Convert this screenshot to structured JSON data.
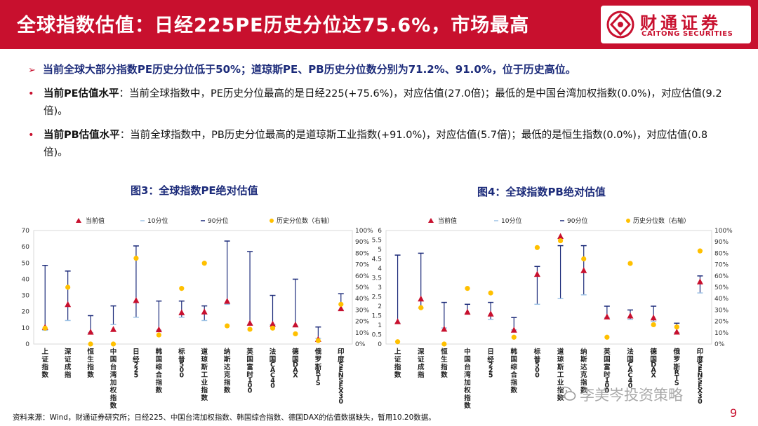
{
  "header": {
    "title": "全球指数估值：日经225PE历史分位达75.6%，市场最高",
    "logo_cn": "财通证券",
    "logo_en": "CAITONG SECURITIES"
  },
  "summary": "当前全球大部分指数PE历史分位低于50%；道琼斯PE、PB历史分位数分别为71.2%、91.0%，位于历史高位。",
  "bullets": [
    {
      "label": "当前PE估值水平",
      "text": "：当前全球指数中，PE历史分位最高的是日经225(+75.6%)，对应估值(27.0倍)；最低的是中国台湾加权指数(0.0%)，对应估值(9.2倍)。"
    },
    {
      "label": "当前PB估值水平",
      "text": "：当前全球指数中，PB历史分位最高的是道琼斯工业指数(+91.0%)，对应估值(5.7倍)；最低的是恒生指数(0.0%)，对应估值(0.8倍)。"
    }
  ],
  "colors": {
    "brand": "#c8102e",
    "navy": "#1c2b7a",
    "current": "#c8102e",
    "percentile": "#ffc000",
    "line": "#1c2b7a"
  },
  "chart_data": [
    {
      "type": "scatter",
      "title": "图3：全球指数PE绝对估值",
      "legend": [
        "当前值",
        "10分位",
        "90分位",
        "历史分位数（右轴）"
      ],
      "legend_position": "top",
      "categories": [
        "上证指数",
        "深证成指",
        "恒生指数",
        "中国台湾加权指数",
        "日经225",
        "韩国综合指数",
        "标普500",
        "道琼斯工业指数",
        "纳斯达克指数",
        "英国富时100",
        "法国CAC40",
        "德国DAX",
        "俄罗斯RTS",
        "印度SENSEX30"
      ],
      "y_left_ticks": [
        "0",
        "10",
        "20",
        "30",
        "40",
        "50",
        "60",
        "70"
      ],
      "y_right_ticks": [
        "0%",
        "10%",
        "20%",
        "30%",
        "40%",
        "50%",
        "60%",
        "70%",
        "80%",
        "90%",
        "100%"
      ],
      "ylim_left": [
        0,
        70
      ],
      "ylim_right": [
        0,
        1
      ],
      "series": [
        {
          "name": "当前值",
          "axis": "left",
          "values": [
            10.5,
            24.5,
            7.5,
            9.2,
            27.0,
            9.0,
            19.5,
            20.0,
            26.5,
            13.0,
            12.5,
            12.0,
            3.0,
            22.0
          ]
        },
        {
          "name": "10分位",
          "axis": "left",
          "values": [
            8.5,
            14.5,
            7.0,
            12.0,
            16.5,
            8.5,
            16.5,
            14.5,
            24.5,
            12.0,
            12.0,
            11.0,
            3.5,
            21.0
          ]
        },
        {
          "name": "90分位",
          "axis": "left",
          "values": [
            48.5,
            45.0,
            17.5,
            23.5,
            60.5,
            26.5,
            26.5,
            23.5,
            63.5,
            57.0,
            30.0,
            40.0,
            10.5,
            31.0
          ]
        },
        {
          "name": "历史分位数（右轴）",
          "axis": "right",
          "values": [
            0.14,
            0.5,
            0.0,
            0.0,
            0.756,
            0.08,
            0.49,
            0.712,
            0.16,
            0.13,
            0.14,
            0.09,
            0.03,
            0.35
          ]
        }
      ]
    },
    {
      "type": "scatter",
      "title": "图4：全球指数PB绝对估值",
      "legend": [
        "当前值",
        "10分位",
        "90分位",
        "历史分位数（右轴）"
      ],
      "legend_position": "top",
      "categories": [
        "上证指数",
        "深证成指",
        "恒生指数",
        "中国台湾加权指数",
        "日经225",
        "韩国综合指数",
        "标普500",
        "道琼斯工业指数",
        "纳斯达克指数",
        "英国富时100",
        "法国CAC40",
        "德国DAX",
        "俄罗斯RTS",
        "印度SENSEX30"
      ],
      "y_left_ticks": [
        "0",
        "0.5",
        "1",
        "1.5",
        "2",
        "2.5",
        "3",
        "3.5",
        "4",
        "4.5",
        "5",
        "5.5",
        "6"
      ],
      "y_right_ticks": [
        "0%",
        "10%",
        "20%",
        "30%",
        "40%",
        "50%",
        "60%",
        "70%",
        "80%",
        "90%",
        "100%"
      ],
      "ylim_left": [
        0,
        6
      ],
      "ylim_right": [
        0,
        1
      ],
      "series": [
        {
          "name": "当前值",
          "axis": "left",
          "values": [
            1.2,
            2.4,
            0.8,
            1.7,
            1.6,
            0.75,
            3.7,
            5.7,
            3.9,
            1.45,
            1.5,
            1.4,
            0.65,
            3.3
          ]
        },
        {
          "name": "10分位",
          "axis": "left",
          "values": [
            1.1,
            1.9,
            0.85,
            1.6,
            1.3,
            0.75,
            2.1,
            2.4,
            2.6,
            1.4,
            1.3,
            1.2,
            0.6,
            2.7
          ]
        },
        {
          "name": "90分位",
          "axis": "left",
          "values": [
            4.7,
            4.8,
            2.2,
            2.1,
            2.2,
            1.4,
            4.1,
            5.2,
            5.2,
            2.0,
            1.8,
            2.0,
            1.1,
            3.6
          ]
        },
        {
          "name": "历史分位数（右轴）",
          "axis": "right",
          "values": [
            0.02,
            0.32,
            0.0,
            0.49,
            0.45,
            0.06,
            0.85,
            0.91,
            0.75,
            0.06,
            0.71,
            0.17,
            0.15,
            0.82
          ]
        }
      ]
    }
  ],
  "footer": {
    "source": "资料来源：Wind，财通证券研究所；日经225、中国台湾加权指数、韩国综合指数、德国DAX的估值数据缺失，暂用10.20数据。",
    "page": "9",
    "watermark": "李美岑投资策略"
  }
}
